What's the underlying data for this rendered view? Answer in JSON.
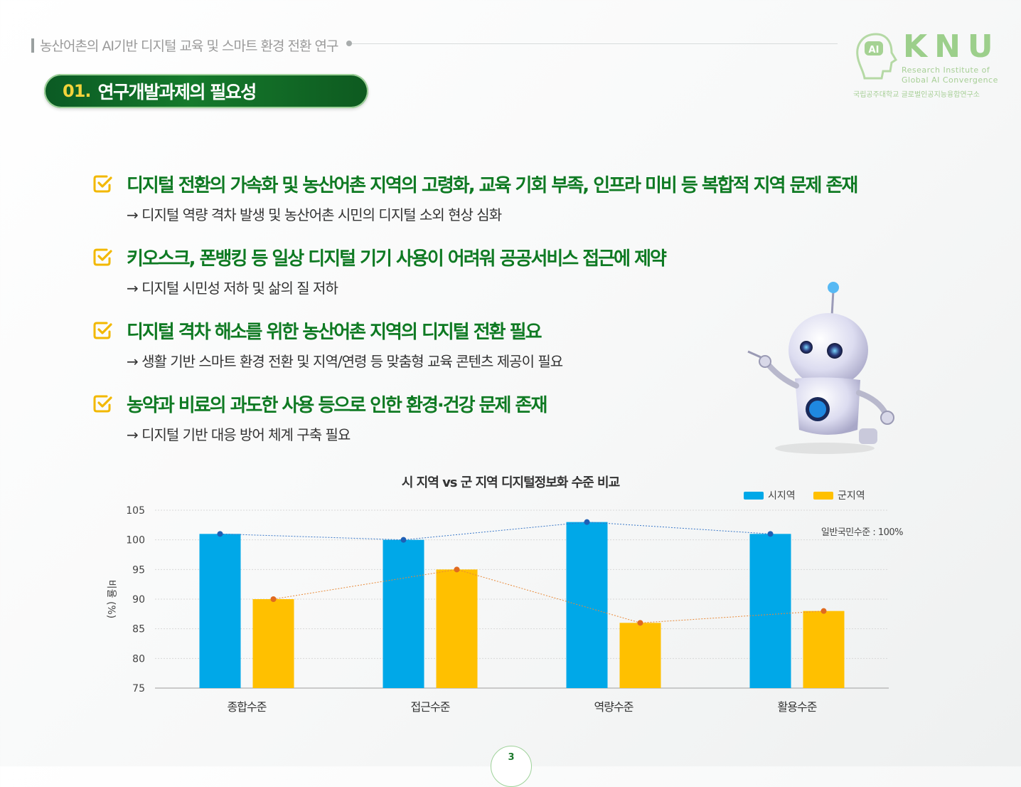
{
  "header": {
    "title": "농산어촌의 AI기반 디지털 교육 및 스마트 환경 전환 연구"
  },
  "logo": {
    "mark": "AI",
    "name": "KNU",
    "line1": "Research Institute of",
    "line2": "Global AI Convergence",
    "korean": "국립공주대학교 글로벌인공지능융합연구소"
  },
  "section": {
    "number": "01.",
    "title": "연구개발과제의 필요성"
  },
  "bullets": [
    {
      "main": "디지털 전환의 가속화 및 농산어촌 지역의 고령화, 교육 기회 부족, 인프라 미비 등 복합적 지역 문제 존재",
      "sub": "→ 디지털 역량 격차 발생 및 농산어촌 시민의 디지털 소외 현상 심화"
    },
    {
      "main": "키오스크, 폰뱅킹 등 일상 디지털 기기 사용이 어려워 공공서비스 접근에 제약",
      "sub": "→ 디지털 시민성 저하 및 삶의 질 저하"
    },
    {
      "main": "디지털 격차 해소를 위한 농산어촌 지역의 디지털 전환 필요",
      "sub": "→ 생활 기반 스마트 환경 전환 및 지역/연령 등 맞춤형 교육 콘텐츠 제공이 필요"
    },
    {
      "main": "농약과 비료의 과도한 사용 등으로 인한 환경·건강 문제 존재",
      "sub": "→ 디지털 기반 대응 방어 체계 구축 필요"
    }
  ],
  "colors": {
    "accent_green": "#0f7a23",
    "check_yellow": "#f2b800",
    "series_city": "#00a8e8",
    "series_county": "#ffc000"
  },
  "chart_data": {
    "type": "bar",
    "title": "시 지역 vs 군 지역 디지털정보화 수준 비교",
    "categories": [
      "종합수준",
      "접근수준",
      "역량수준",
      "활용수준"
    ],
    "series": [
      {
        "name": "시지역",
        "values": [
          101,
          100,
          103,
          101
        ],
        "color": "#00a8e8"
      },
      {
        "name": "군지역",
        "values": [
          90,
          95,
          86,
          88
        ],
        "color": "#ffc000"
      }
    ],
    "ylabel": "비율 (%)",
    "ylim": [
      75,
      105
    ],
    "yticks": [
      "75",
      "80",
      "85",
      "90",
      "95",
      "100",
      "105"
    ],
    "annotation": "일반국민수준 : 100%",
    "legend_position": "top-right",
    "grid": true
  },
  "page": {
    "number": "3"
  }
}
